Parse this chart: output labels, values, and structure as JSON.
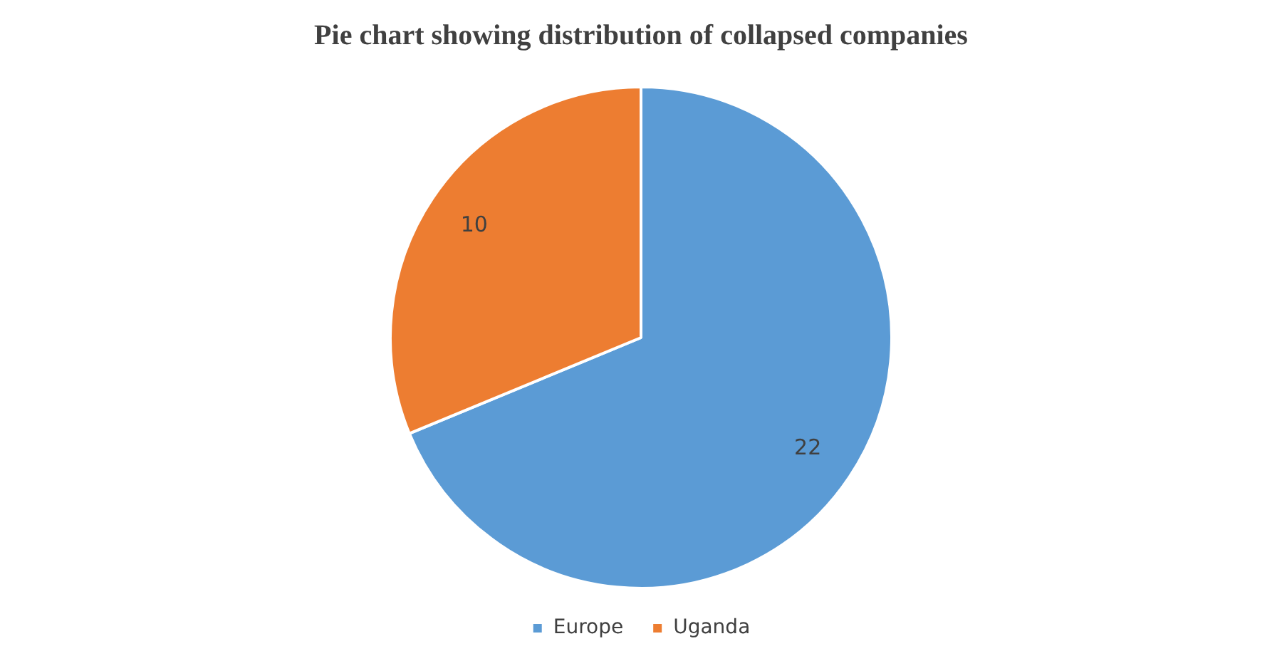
{
  "chart_data": {
    "type": "pie",
    "title": "Pie chart showing distribution of collapsed companies",
    "categories": [
      "Europe",
      "Uganda"
    ],
    "values": [
      22,
      10
    ],
    "colors": [
      "#5b9bd5",
      "#ed7d31"
    ],
    "data_labels": true,
    "legend": "bottom"
  }
}
